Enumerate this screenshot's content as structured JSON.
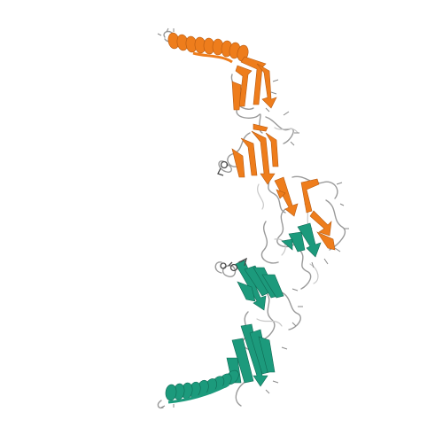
{
  "image": {
    "kind": "protein-structure-ribbon-render",
    "background": "#ffffff"
  },
  "chains": [
    {
      "name": "chain-a",
      "color": "#ee7d1c"
    },
    {
      "name": "chain-b",
      "color": "#1c9a7c"
    }
  ],
  "colors": {
    "coil": "#9a9a9a",
    "coil_light": "#c8c8c8",
    "ligand_outline": "#4a4a4a"
  }
}
